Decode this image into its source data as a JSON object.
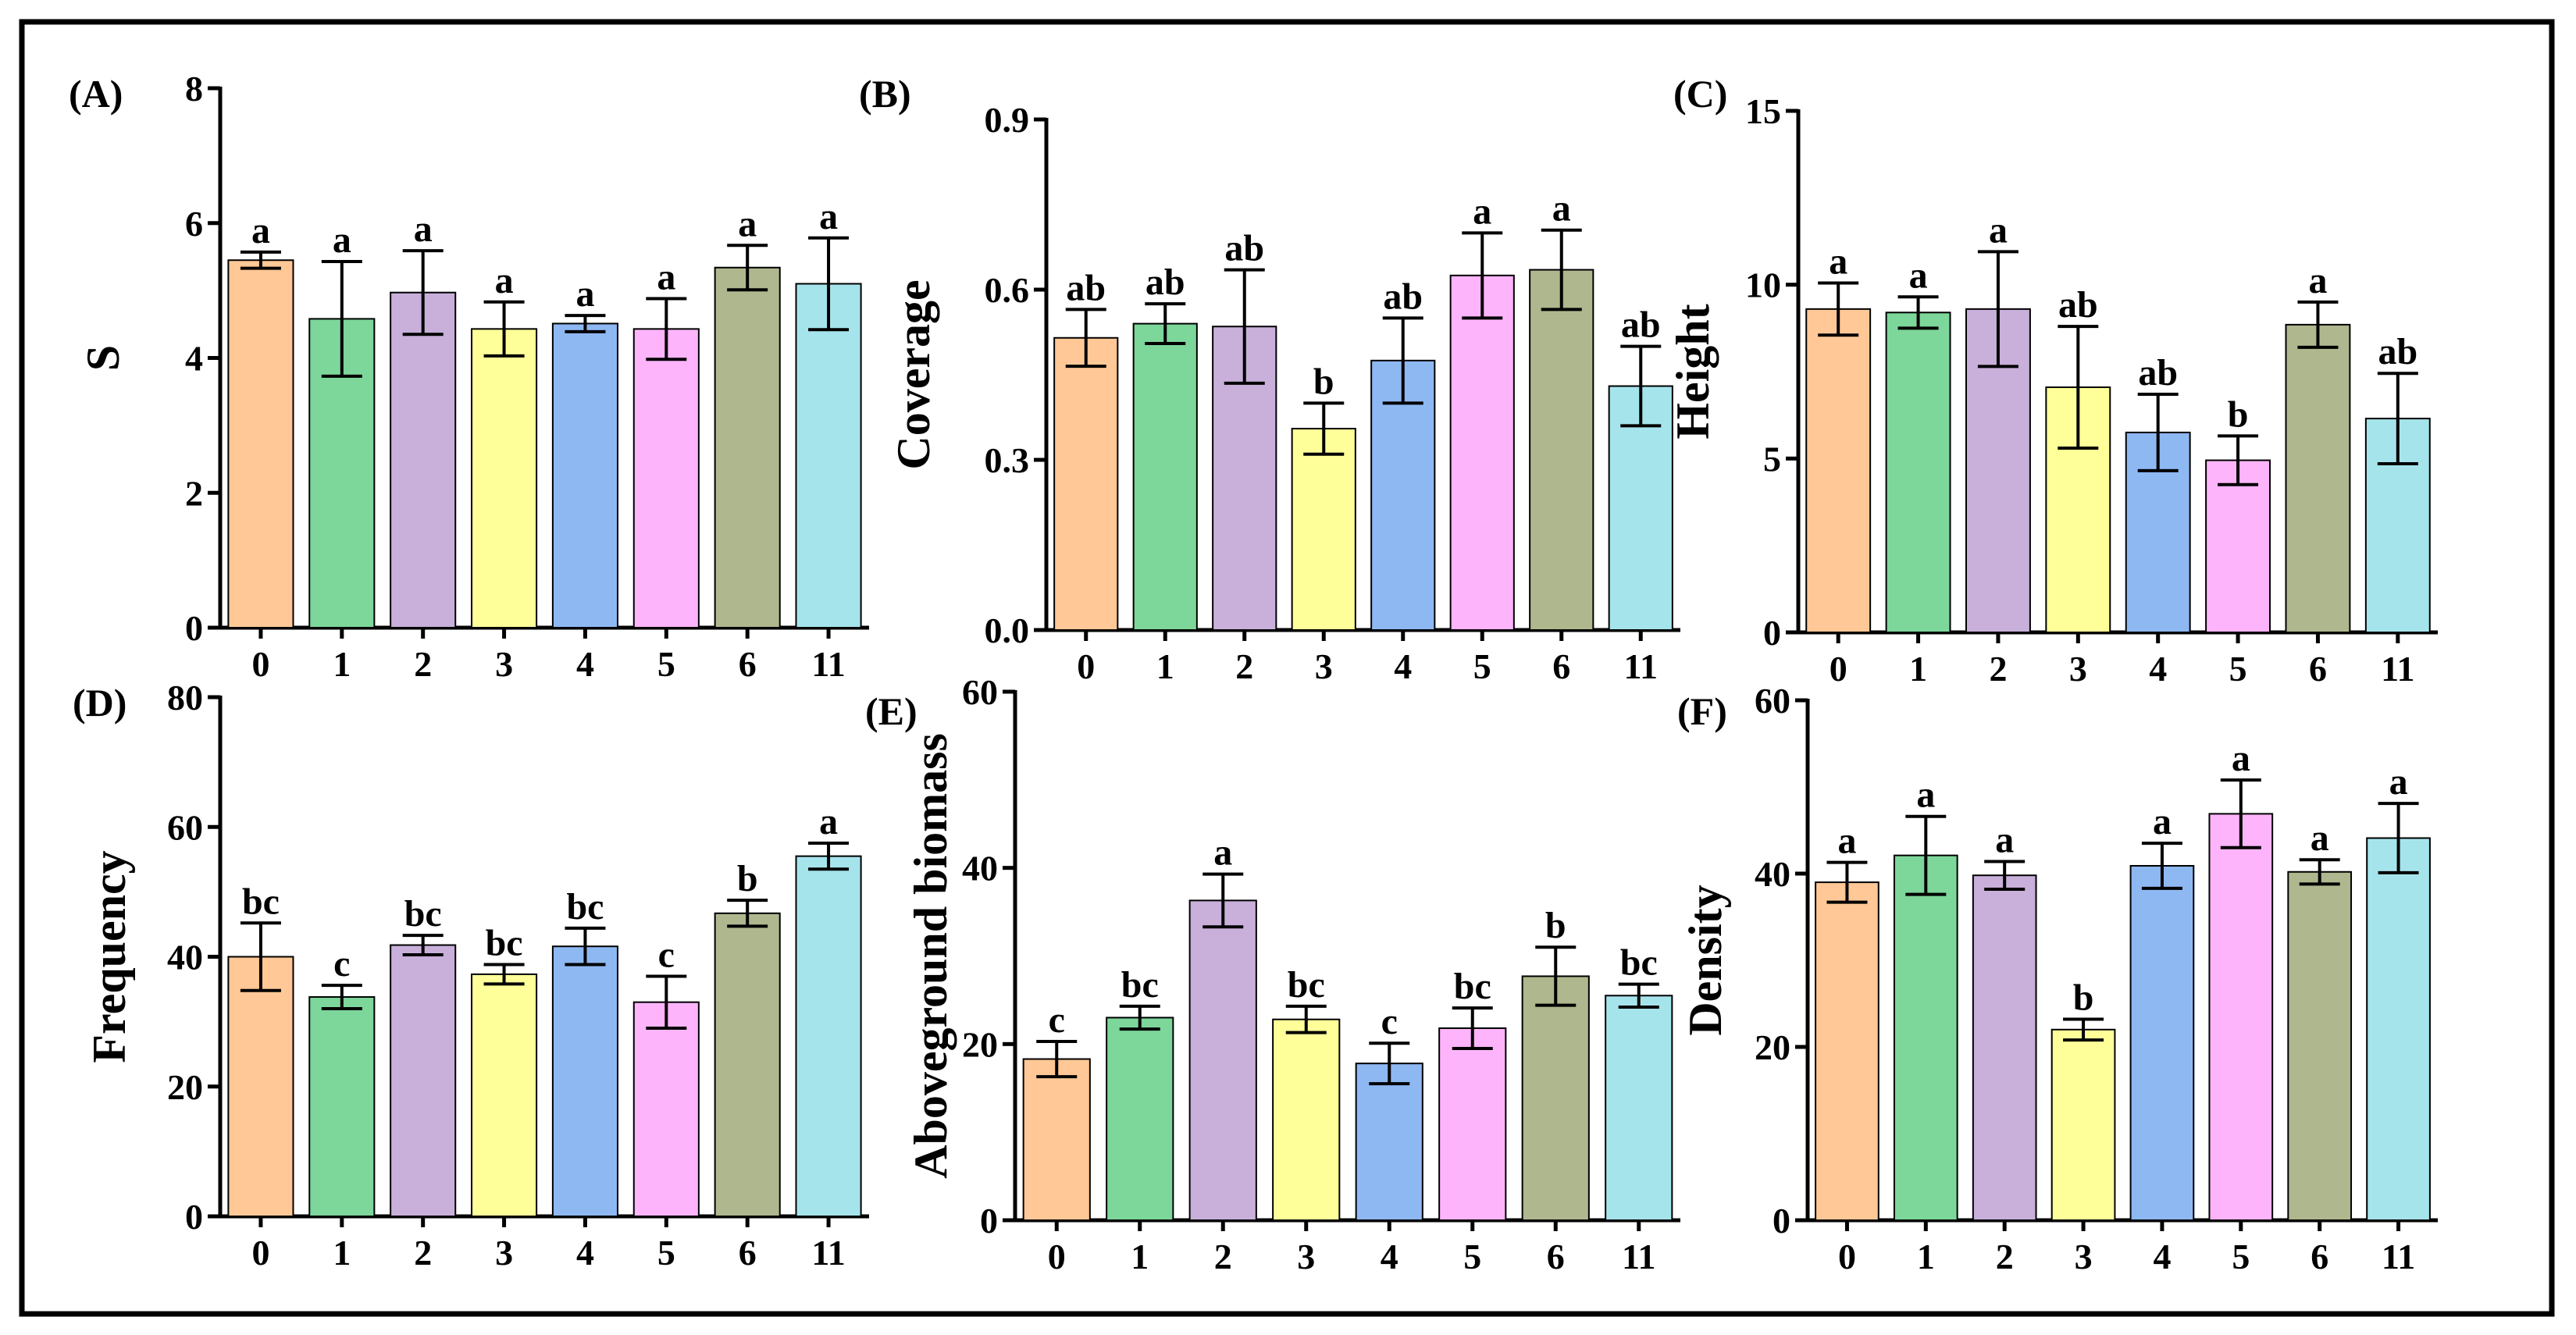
{
  "colors": [
    "#FFC896",
    "#7DD69A",
    "#C8B0DA",
    "#FFFF9A",
    "#8EB8F2",
    "#FDB4FA",
    "#AEB78E",
    "#A6E4EC"
  ],
  "chart_data": [
    {
      "type": "bar",
      "panel_label": "(A)",
      "title": "",
      "xlabel": "",
      "ylabel": "S",
      "categories": [
        "0",
        "1",
        "2",
        "3",
        "4",
        "5",
        "6",
        "11"
      ],
      "values": [
        5.45,
        4.58,
        4.97,
        4.43,
        4.51,
        4.43,
        5.34,
        5.1
      ],
      "errors": [
        0.12,
        0.85,
        0.62,
        0.4,
        0.12,
        0.45,
        0.33,
        0.68
      ],
      "letters": [
        "a",
        "a",
        "a",
        "a",
        "a",
        "a",
        "a",
        "a"
      ],
      "ylim": [
        0,
        8
      ],
      "yticks": [
        "0",
        "2",
        "4",
        "6",
        "8"
      ],
      "legend": "none"
    },
    {
      "type": "bar",
      "panel_label": "(B)",
      "title": "",
      "xlabel": "",
      "ylabel": "Coverage",
      "categories": [
        "0",
        "1",
        "2",
        "3",
        "4",
        "5",
        "6",
        "11"
      ],
      "values": [
        0.515,
        0.54,
        0.535,
        0.355,
        0.475,
        0.625,
        0.635,
        0.43
      ],
      "errors": [
        0.05,
        0.035,
        0.1,
        0.045,
        0.075,
        0.075,
        0.07,
        0.07
      ],
      "letters": [
        "ab",
        "ab",
        "ab",
        "b",
        "ab",
        "a",
        "a",
        "ab"
      ],
      "ylim": [
        0,
        0.9
      ],
      "yticks": [
        "0.0",
        "0.3",
        "0.6",
        "0.9"
      ],
      "legend": "none"
    },
    {
      "type": "bar",
      "panel_label": "(C)",
      "title": "",
      "xlabel": "",
      "ylabel": "Height",
      "categories": [
        "0",
        "1",
        "2",
        "3",
        "4",
        "5",
        "6",
        "11"
      ],
      "values": [
        9.3,
        9.2,
        9.3,
        7.05,
        5.75,
        4.95,
        8.85,
        6.15
      ],
      "errors": [
        0.75,
        0.45,
        1.65,
        1.75,
        1.1,
        0.7,
        0.65,
        1.3
      ],
      "letters": [
        "a",
        "a",
        "a",
        "ab",
        "ab",
        "b",
        "a",
        "ab"
      ],
      "ylim": [
        0,
        15
      ],
      "yticks": [
        "0",
        "5",
        "10",
        "15"
      ],
      "legend": "none"
    },
    {
      "type": "bar",
      "panel_label": "(D)",
      "title": "",
      "xlabel": "",
      "ylabel": "Frequency",
      "categories": [
        "0",
        "1",
        "2",
        "3",
        "4",
        "5",
        "6",
        "11"
      ],
      "values": [
        40,
        33.8,
        41.8,
        37.3,
        41.6,
        33,
        46.7,
        55.5
      ],
      "errors": [
        5.2,
        1.8,
        1.5,
        1.5,
        2.8,
        4,
        2,
        2
      ],
      "letters": [
        "bc",
        "c",
        "bc",
        "bc",
        "bc",
        "c",
        "b",
        "a"
      ],
      "ylim": [
        0,
        80
      ],
      "yticks": [
        "0",
        "20",
        "40",
        "60",
        "80"
      ],
      "legend": "none"
    },
    {
      "type": "bar",
      "panel_label": "(E)",
      "title": "",
      "xlabel": "",
      "ylabel": "Aboveground biomass",
      "categories": [
        "0",
        "1",
        "2",
        "3",
        "4",
        "5",
        "6",
        "11"
      ],
      "values": [
        18.3,
        23,
        36.3,
        22.8,
        17.8,
        21.8,
        27.7,
        25.5
      ],
      "errors": [
        2,
        1.3,
        3,
        1.5,
        2.3,
        2.3,
        3.3,
        1.3
      ],
      "letters": [
        "c",
        "bc",
        "a",
        "bc",
        "c",
        "bc",
        "b",
        "bc"
      ],
      "ylim": [
        0,
        60
      ],
      "yticks": [
        "0",
        "20",
        "40",
        "60"
      ],
      "legend": "none"
    },
    {
      "type": "bar",
      "panel_label": "(F)",
      "title": "",
      "xlabel": "",
      "ylabel": "Density",
      "categories": [
        "0",
        "1",
        "2",
        "3",
        "4",
        "5",
        "6",
        "11"
      ],
      "values": [
        39,
        42.1,
        39.8,
        22,
        40.9,
        46.9,
        40.2,
        44.1
      ],
      "errors": [
        2.3,
        4.5,
        1.6,
        1.2,
        2.6,
        3.9,
        1.4,
        4
      ],
      "letters": [
        "a",
        "a",
        "a",
        "b",
        "a",
        "a",
        "a",
        "a"
      ],
      "ylim": [
        0,
        60
      ],
      "yticks": [
        "0",
        "20",
        "40",
        "60"
      ],
      "legend": "none"
    }
  ]
}
